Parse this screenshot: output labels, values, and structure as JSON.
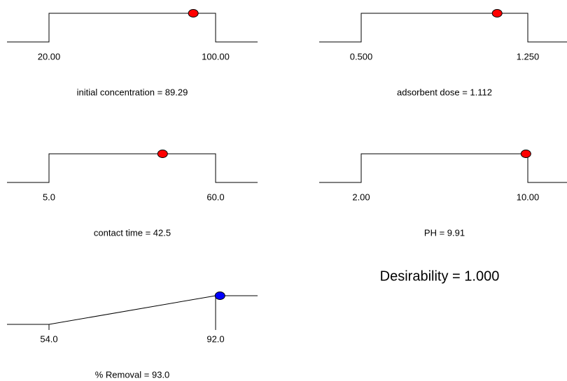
{
  "chart_data": [
    {
      "type": "step",
      "label": "initial concentration = 89.29",
      "xlim": [
        20,
        100
      ],
      "xticks": [
        {
          "value": 20,
          "label": "20.00"
        },
        {
          "value": 100,
          "label": "100.00"
        }
      ],
      "values": [
        89.29
      ],
      "color": "#ff0000"
    },
    {
      "type": "step",
      "label": "adsorbent dose = 1.112",
      "xlim": [
        0.5,
        1.25
      ],
      "xticks": [
        {
          "value": 0.5,
          "label": "0.500"
        },
        {
          "value": 1.25,
          "label": "1.250"
        }
      ],
      "values": [
        1.112
      ],
      "color": "#ff0000"
    },
    {
      "type": "step",
      "label": "contact time = 42.5",
      "xlim": [
        5,
        60
      ],
      "xticks": [
        {
          "value": 5,
          "label": "5.0"
        },
        {
          "value": 60,
          "label": "60.0"
        }
      ],
      "values": [
        42.5
      ],
      "color": "#ff0000"
    },
    {
      "type": "step",
      "label": "PH = 9.91",
      "xlim": [
        2,
        10
      ],
      "xticks": [
        {
          "value": 2,
          "label": "2.00"
        },
        {
          "value": 10,
          "label": "10.00"
        }
      ],
      "values": [
        9.91
      ],
      "color": "#ff0000"
    },
    {
      "type": "ramp",
      "label": "% Removal = 93.0",
      "xlim": [
        54,
        92
      ],
      "xticks": [
        {
          "value": 54,
          "label": "54.0"
        },
        {
          "value": 92,
          "label": "92.0"
        }
      ],
      "values": [
        93.0
      ],
      "color": "#0000ff"
    }
  ],
  "desirability": "Desirability = 1.000"
}
